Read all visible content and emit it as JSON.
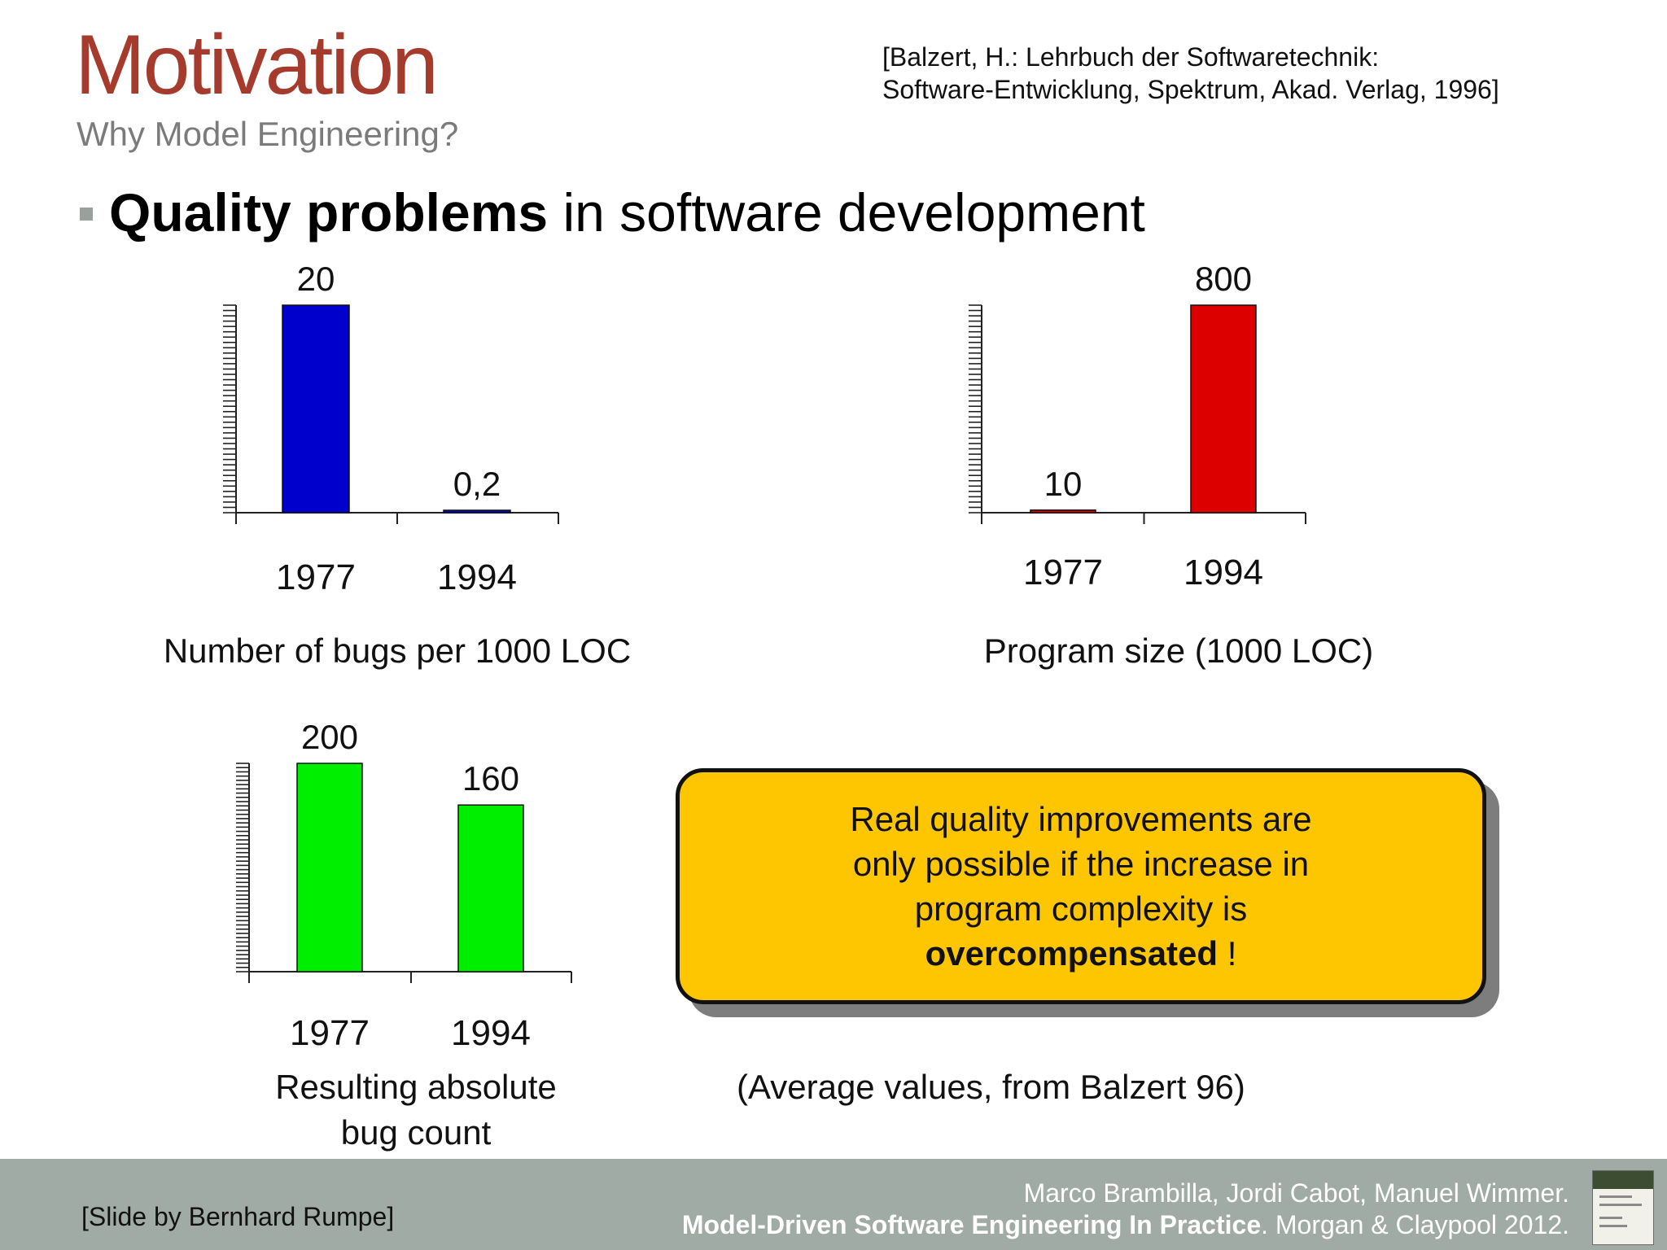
{
  "slide": {
    "title": "Motivation",
    "subtitle": "Why Model Engineering?",
    "citation_line1": "[Balzert, H.: Lehrbuch der Softwaretechnik:",
    "citation_line2": "Software-Entwicklung, Spektrum, Akad. Verlag, 1996]",
    "bullet_bold": "Quality problems",
    "bullet_rest": " in software development"
  },
  "chart_data": [
    {
      "type": "bar",
      "categories": [
        "1977",
        "1994"
      ],
      "values": [
        20,
        0.2
      ],
      "value_labels": [
        "20",
        "0,2"
      ],
      "title": "Number of bugs per 1000 LOC",
      "color": "#0000cc",
      "ylim": [
        0,
        20
      ]
    },
    {
      "type": "bar",
      "categories": [
        "1977",
        "1994"
      ],
      "values": [
        10,
        800
      ],
      "value_labels": [
        "10",
        "800"
      ],
      "title": "Program size (1000 LOC)",
      "color": "#dd0000",
      "ylim": [
        0,
        800
      ]
    },
    {
      "type": "bar",
      "categories": [
        "1977",
        "1994"
      ],
      "values": [
        200,
        160
      ],
      "value_labels": [
        "200",
        "160"
      ],
      "title_lines": [
        "Resulting absolute",
        "bug count"
      ],
      "color": "#00ee00",
      "ylim": [
        0,
        200
      ]
    }
  ],
  "callout": {
    "line1": "Real quality improvements are",
    "line2": "only possible if the increase in",
    "line3": "program complexity is",
    "line4_bold": "overcompensated",
    "line4_rest": " !",
    "fill": "#fec600"
  },
  "note": "(Average values, from Balzert 96)",
  "footer": {
    "credit": "[Slide by Bernhard Rumpe]",
    "authors": "Marco Brambilla, Jordi Cabot, Manuel Wimmer.",
    "book_title": "Model-Driven Software Engineering In Practice",
    "book_rest": ". Morgan & Claypool 2012.",
    "band_color": "#a1aba6"
  }
}
